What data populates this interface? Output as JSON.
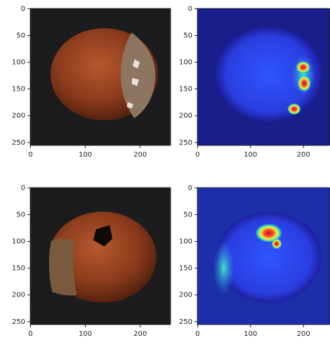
{
  "chart_data": [
    {
      "type": "image",
      "xlim": [
        -0.5,
        255.5
      ],
      "ylim": [
        255.5,
        -0.5
      ],
      "xticks": [
        0,
        100,
        200
      ],
      "yticks": [
        0,
        50,
        100,
        150,
        200,
        250
      ]
    },
    {
      "type": "image",
      "xlim": [
        -0.5,
        255.5
      ],
      "ylim": [
        255.5,
        -0.5
      ],
      "xticks": [
        0,
        100,
        200
      ],
      "yticks": [
        0,
        50,
        100,
        150,
        200,
        250
      ]
    },
    {
      "type": "image",
      "xlim": [
        -0.5,
        255.5
      ],
      "ylim": [
        255.5,
        -0.5
      ],
      "xticks": [
        0,
        100,
        200
      ],
      "yticks": [
        0,
        50,
        100,
        150,
        200,
        250
      ]
    },
    {
      "type": "image",
      "xlim": [
        -0.5,
        255.5
      ],
      "ylim": [
        255.5,
        -0.5
      ],
      "xticks": [
        0,
        100,
        200
      ],
      "yticks": [
        0,
        50,
        100,
        150,
        200,
        250
      ]
    }
  ]
}
